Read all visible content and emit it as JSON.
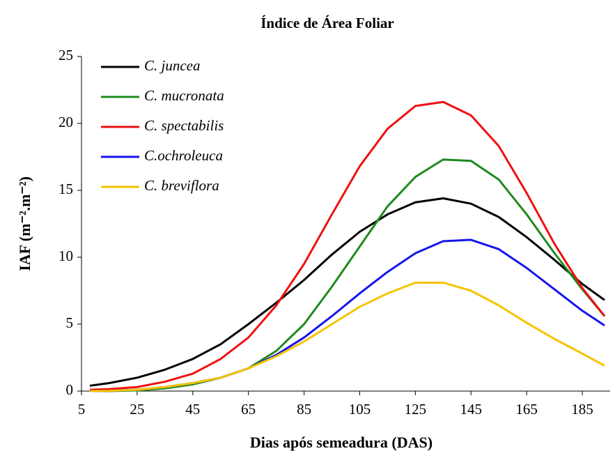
{
  "chart_data": {
    "type": "line",
    "title": "Índice de Área Foliar",
    "xlabel": "Dias após semeadura (DAS)",
    "ylabel": "IAF (m⁻².m⁻²)",
    "x": [
      8,
      15,
      25,
      35,
      45,
      55,
      65,
      75,
      85,
      95,
      105,
      115,
      125,
      135,
      145,
      155,
      165,
      175,
      185,
      193
    ],
    "series": [
      {
        "name": "C. juncea",
        "color": "#000000",
        "values": [
          0.4,
          0.6,
          1.0,
          1.6,
          2.4,
          3.5,
          5.0,
          6.6,
          8.3,
          10.2,
          11.9,
          13.2,
          14.1,
          14.4,
          14.0,
          13.0,
          11.5,
          9.8,
          8.0,
          6.8
        ]
      },
      {
        "name": "C. mucronata",
        "color": "#1e8a1e",
        "values": [
          0,
          0,
          0.05,
          0.2,
          0.5,
          1.0,
          1.7,
          3.0,
          5.0,
          7.8,
          10.8,
          13.8,
          16.0,
          17.3,
          17.2,
          15.8,
          13.2,
          10.3,
          7.6,
          5.6
        ]
      },
      {
        "name": "C. spectabilis",
        "color": "#ee1111",
        "values": [
          0.1,
          0.15,
          0.3,
          0.7,
          1.3,
          2.4,
          4.0,
          6.4,
          9.5,
          13.2,
          16.8,
          19.6,
          21.3,
          21.6,
          20.6,
          18.3,
          14.8,
          11.0,
          7.7,
          5.6
        ]
      },
      {
        "name": "C.ochroleuca",
        "color": "#1515ee",
        "values": [
          0,
          0.02,
          0.1,
          0.3,
          0.6,
          1.0,
          1.7,
          2.7,
          4.0,
          5.6,
          7.3,
          8.9,
          10.3,
          11.2,
          11.3,
          10.6,
          9.2,
          7.6,
          6.0,
          4.9
        ]
      },
      {
        "name": "C. breviflora",
        "color": "#f5c400",
        "values": [
          0,
          0.02,
          0.1,
          0.3,
          0.6,
          1.0,
          1.7,
          2.6,
          3.7,
          5.0,
          6.3,
          7.3,
          8.1,
          8.1,
          7.5,
          6.4,
          5.1,
          3.9,
          2.8,
          1.9
        ]
      }
    ],
    "xlim": [
      5,
      195
    ],
    "xticks": [
      5,
      25,
      45,
      65,
      85,
      105,
      125,
      145,
      165,
      185
    ],
    "ylim": [
      0,
      25
    ],
    "yticks": [
      0,
      5,
      10,
      15,
      20,
      25
    ],
    "legend": "upper left"
  }
}
